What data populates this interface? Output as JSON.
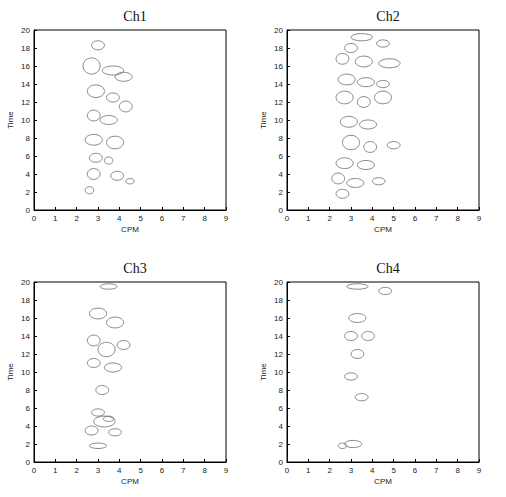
{
  "chart_data": [
    {
      "type": "contour",
      "title": "Ch1",
      "x_label": "CPM",
      "y_label": "Time",
      "xlim": [
        0,
        9
      ],
      "xticks": [
        0,
        1,
        2,
        3,
        4,
        5,
        6,
        7,
        8,
        9
      ],
      "ylim": [
        0,
        20
      ],
      "yticks": [
        0,
        2,
        4,
        6,
        8,
        10,
        12,
        14,
        16,
        18,
        20
      ],
      "grid": false,
      "color": "#666666",
      "ellipses": [
        {
          "x": 3.0,
          "y": 18.3,
          "rx": 0.3,
          "ry": 0.5
        },
        {
          "x": 2.7,
          "y": 16.0,
          "rx": 0.4,
          "ry": 0.9
        },
        {
          "x": 3.7,
          "y": 15.5,
          "rx": 0.5,
          "ry": 0.5
        },
        {
          "x": 4.2,
          "y": 14.8,
          "rx": 0.4,
          "ry": 0.5
        },
        {
          "x": 2.9,
          "y": 13.2,
          "rx": 0.4,
          "ry": 0.7
        },
        {
          "x": 3.7,
          "y": 12.5,
          "rx": 0.3,
          "ry": 0.5
        },
        {
          "x": 4.3,
          "y": 11.5,
          "rx": 0.3,
          "ry": 0.6
        },
        {
          "x": 2.8,
          "y": 10.5,
          "rx": 0.3,
          "ry": 0.6
        },
        {
          "x": 3.5,
          "y": 10.0,
          "rx": 0.4,
          "ry": 0.5
        },
        {
          "x": 2.8,
          "y": 7.8,
          "rx": 0.4,
          "ry": 0.6
        },
        {
          "x": 3.8,
          "y": 7.5,
          "rx": 0.4,
          "ry": 0.7
        },
        {
          "x": 2.9,
          "y": 5.8,
          "rx": 0.3,
          "ry": 0.5
        },
        {
          "x": 3.5,
          "y": 5.5,
          "rx": 0.2,
          "ry": 0.4
        },
        {
          "x": 2.8,
          "y": 4.0,
          "rx": 0.3,
          "ry": 0.6
        },
        {
          "x": 3.9,
          "y": 3.8,
          "rx": 0.3,
          "ry": 0.5
        },
        {
          "x": 4.5,
          "y": 3.2,
          "rx": 0.2,
          "ry": 0.3
        },
        {
          "x": 2.6,
          "y": 2.2,
          "rx": 0.2,
          "ry": 0.4
        }
      ]
    },
    {
      "type": "contour",
      "title": "Ch2",
      "x_label": "CPM",
      "y_label": "Time",
      "xlim": [
        0,
        9
      ],
      "xticks": [
        0,
        1,
        2,
        3,
        4,
        5,
        6,
        7,
        8,
        9
      ],
      "ylim": [
        0,
        20
      ],
      "yticks": [
        0,
        2,
        4,
        6,
        8,
        10,
        12,
        14,
        16,
        18,
        20
      ],
      "grid": false,
      "color": "#666666",
      "ellipses": [
        {
          "x": 3.5,
          "y": 19.2,
          "rx": 0.5,
          "ry": 0.4
        },
        {
          "x": 3.0,
          "y": 18.0,
          "rx": 0.3,
          "ry": 0.5
        },
        {
          "x": 4.5,
          "y": 18.5,
          "rx": 0.3,
          "ry": 0.4
        },
        {
          "x": 2.6,
          "y": 16.8,
          "rx": 0.3,
          "ry": 0.6
        },
        {
          "x": 3.6,
          "y": 16.5,
          "rx": 0.4,
          "ry": 0.6
        },
        {
          "x": 4.8,
          "y": 16.3,
          "rx": 0.5,
          "ry": 0.5
        },
        {
          "x": 2.8,
          "y": 14.5,
          "rx": 0.4,
          "ry": 0.6
        },
        {
          "x": 3.7,
          "y": 14.2,
          "rx": 0.4,
          "ry": 0.5
        },
        {
          "x": 4.5,
          "y": 14.0,
          "rx": 0.3,
          "ry": 0.4
        },
        {
          "x": 2.7,
          "y": 12.5,
          "rx": 0.4,
          "ry": 0.7
        },
        {
          "x": 3.6,
          "y": 12.0,
          "rx": 0.3,
          "ry": 0.6
        },
        {
          "x": 4.5,
          "y": 12.5,
          "rx": 0.4,
          "ry": 0.7
        },
        {
          "x": 2.9,
          "y": 9.8,
          "rx": 0.4,
          "ry": 0.6
        },
        {
          "x": 3.8,
          "y": 9.5,
          "rx": 0.4,
          "ry": 0.5
        },
        {
          "x": 3.0,
          "y": 7.5,
          "rx": 0.4,
          "ry": 0.8
        },
        {
          "x": 3.9,
          "y": 7.0,
          "rx": 0.3,
          "ry": 0.6
        },
        {
          "x": 5.0,
          "y": 7.2,
          "rx": 0.3,
          "ry": 0.4
        },
        {
          "x": 2.7,
          "y": 5.2,
          "rx": 0.4,
          "ry": 0.6
        },
        {
          "x": 3.7,
          "y": 5.0,
          "rx": 0.4,
          "ry": 0.5
        },
        {
          "x": 2.4,
          "y": 3.5,
          "rx": 0.3,
          "ry": 0.6
        },
        {
          "x": 3.2,
          "y": 3.0,
          "rx": 0.4,
          "ry": 0.5
        },
        {
          "x": 4.3,
          "y": 3.2,
          "rx": 0.3,
          "ry": 0.4
        },
        {
          "x": 2.6,
          "y": 1.8,
          "rx": 0.3,
          "ry": 0.5
        }
      ]
    },
    {
      "type": "contour",
      "title": "Ch3",
      "x_label": "CPM",
      "y_label": "Time",
      "xlim": [
        0,
        9
      ],
      "xticks": [
        0,
        1,
        2,
        3,
        4,
        5,
        6,
        7,
        8,
        9
      ],
      "ylim": [
        0,
        20
      ],
      "yticks": [
        0,
        2,
        4,
        6,
        8,
        10,
        12,
        14,
        16,
        18,
        20
      ],
      "grid": false,
      "color": "#666666",
      "ellipses": [
        {
          "x": 3.5,
          "y": 19.5,
          "rx": 0.4,
          "ry": 0.3
        },
        {
          "x": 3.0,
          "y": 16.5,
          "rx": 0.4,
          "ry": 0.6
        },
        {
          "x": 3.8,
          "y": 15.5,
          "rx": 0.4,
          "ry": 0.6
        },
        {
          "x": 2.8,
          "y": 13.5,
          "rx": 0.3,
          "ry": 0.6
        },
        {
          "x": 3.4,
          "y": 12.5,
          "rx": 0.4,
          "ry": 0.8
        },
        {
          "x": 4.2,
          "y": 13.0,
          "rx": 0.3,
          "ry": 0.5
        },
        {
          "x": 2.8,
          "y": 11.0,
          "rx": 0.3,
          "ry": 0.5
        },
        {
          "x": 3.7,
          "y": 10.5,
          "rx": 0.4,
          "ry": 0.5
        },
        {
          "x": 3.2,
          "y": 8.0,
          "rx": 0.3,
          "ry": 0.5
        },
        {
          "x": 3.0,
          "y": 5.5,
          "rx": 0.3,
          "ry": 0.4
        },
        {
          "x": 3.3,
          "y": 4.5,
          "rx": 0.5,
          "ry": 0.6
        },
        {
          "x": 3.5,
          "y": 4.8,
          "rx": 0.25,
          "ry": 0.3
        },
        {
          "x": 2.7,
          "y": 3.5,
          "rx": 0.3,
          "ry": 0.5
        },
        {
          "x": 3.8,
          "y": 3.3,
          "rx": 0.3,
          "ry": 0.4
        },
        {
          "x": 3.0,
          "y": 1.8,
          "rx": 0.4,
          "ry": 0.3
        }
      ]
    },
    {
      "type": "contour",
      "title": "Ch4",
      "x_label": "CPM",
      "y_label": "Time",
      "xlim": [
        0,
        9
      ],
      "xticks": [
        0,
        1,
        2,
        3,
        4,
        5,
        6,
        7,
        8,
        9
      ],
      "ylim": [
        0,
        20
      ],
      "yticks": [
        0,
        2,
        4,
        6,
        8,
        10,
        12,
        14,
        16,
        18,
        20
      ],
      "grid": false,
      "color": "#666666",
      "ellipses": [
        {
          "x": 3.3,
          "y": 19.5,
          "rx": 0.5,
          "ry": 0.3
        },
        {
          "x": 4.6,
          "y": 19.0,
          "rx": 0.3,
          "ry": 0.4
        },
        {
          "x": 3.3,
          "y": 16.0,
          "rx": 0.4,
          "ry": 0.5
        },
        {
          "x": 3.0,
          "y": 14.0,
          "rx": 0.3,
          "ry": 0.5
        },
        {
          "x": 3.8,
          "y": 14.0,
          "rx": 0.3,
          "ry": 0.5
        },
        {
          "x": 3.3,
          "y": 12.0,
          "rx": 0.3,
          "ry": 0.5
        },
        {
          "x": 3.0,
          "y": 9.5,
          "rx": 0.3,
          "ry": 0.4
        },
        {
          "x": 3.5,
          "y": 7.2,
          "rx": 0.3,
          "ry": 0.4
        },
        {
          "x": 3.1,
          "y": 2.0,
          "rx": 0.4,
          "ry": 0.4
        },
        {
          "x": 2.6,
          "y": 1.8,
          "rx": 0.2,
          "ry": 0.3
        }
      ]
    }
  ]
}
